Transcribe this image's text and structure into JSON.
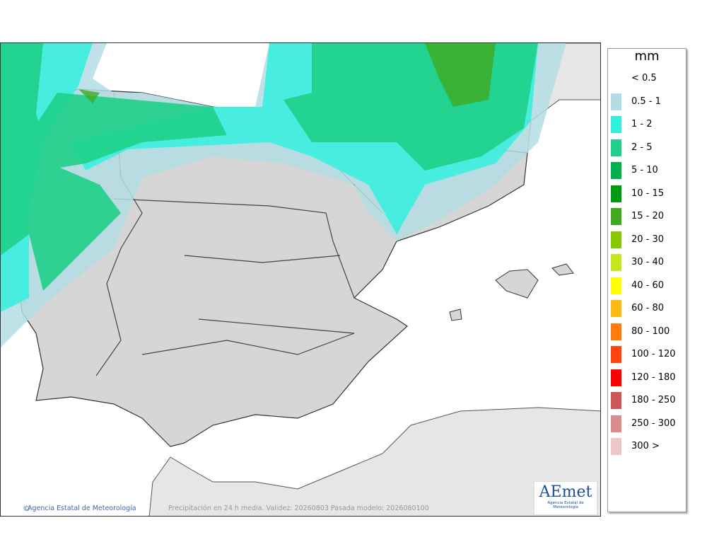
{
  "legend": {
    "title": "mm",
    "items": [
      {
        "label": "< 0.5"
      },
      {
        "label": "0.5 - 1",
        "color": "#b3dde3"
      },
      {
        "label": "1 - 2",
        "color": "#33f0dd"
      },
      {
        "label": "2 - 5",
        "color": "#1fcf8a"
      },
      {
        "label": "5 - 10",
        "color": "#00b04c"
      },
      {
        "label": "10 - 15",
        "color": "#009a10"
      },
      {
        "label": "15 - 20",
        "color": "#3faa1e"
      },
      {
        "label": "20 - 30",
        "color": "#86c800"
      },
      {
        "label": "30 - 40",
        "color": "#c8e61c"
      },
      {
        "label": "40 - 60",
        "color": "#ffff00"
      },
      {
        "label": "60 - 80",
        "color": "#ffb914"
      },
      {
        "label": "80 - 100",
        "color": "#ff7b0a"
      },
      {
        "label": "100 - 120",
        "color": "#ff4510"
      },
      {
        "label": "120 - 180",
        "color": "#ff0000"
      },
      {
        "label": "180 - 250",
        "color": "#cd5757"
      },
      {
        "label": "250 - 300",
        "color": "#dc8c8c"
      },
      {
        "label": "300 >",
        "color": "#efc6c6"
      }
    ]
  },
  "map": {
    "credit": "Agencia Estatal de Meteorología",
    "caption": "Precipitación en 24 h media. Validez: 20260803 Pasada modelo: 2026080100",
    "logo": {
      "name": "AEmet",
      "subtitle": "Agencia Estatal de Meteorología"
    }
  }
}
